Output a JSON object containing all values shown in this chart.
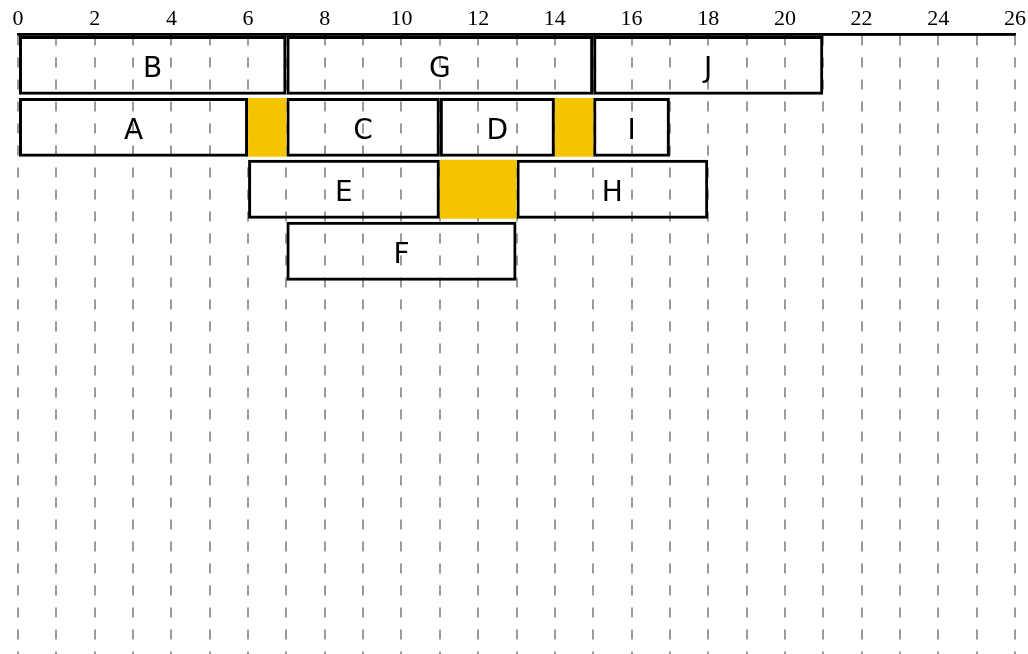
{
  "chart_data": {
    "type": "bar",
    "orientation": "horizontal",
    "categories": [
      null,
      null,
      null,
      null,
      null,
      null,
      null,
      null,
      null,
      null
    ],
    "series": [
      {
        "name": "B",
        "color": "#000000",
        "values": [
          7,
          null,
          null,
          null,
          null,
          null,
          null,
          null,
          null,
          null
        ],
        "base": [
          0,
          null,
          null,
          null,
          null,
          null,
          null,
          null,
          null,
          null
        ]
      },
      {
        "name": "G",
        "color": "#000000",
        "values": [
          8,
          null,
          null,
          null,
          null,
          null,
          null,
          null,
          null,
          null
        ],
        "base": [
          7,
          null,
          null,
          null,
          null,
          null,
          null,
          null,
          null,
          null
        ]
      },
      {
        "name": "J",
        "color": "#000000",
        "values": [
          6,
          null,
          null,
          null,
          null,
          null,
          null,
          null,
          null,
          null
        ],
        "base": [
          15,
          null,
          null,
          null,
          null,
          null,
          null,
          null,
          null,
          null
        ]
      },
      {
        "name": "A",
        "color": "#000000",
        "values": [
          null,
          6,
          null,
          null,
          null,
          null,
          null,
          null,
          null,
          null
        ],
        "base": [
          null,
          0,
          null,
          null,
          null,
          null,
          null,
          null,
          null,
          null
        ]
      },
      {
        "color": "#f5c400",
        "values": [
          null,
          1,
          null,
          null,
          null,
          null,
          null,
          null,
          null,
          null
        ],
        "base": [
          null,
          6,
          null,
          null,
          null,
          null,
          null,
          null,
          null,
          null
        ]
      },
      {
        "name": "C",
        "color": "#000000",
        "values": [
          null,
          4,
          null,
          null,
          null,
          null,
          null,
          null,
          null,
          null
        ],
        "base": [
          null,
          7,
          null,
          null,
          null,
          null,
          null,
          null,
          null,
          null
        ]
      },
      {
        "name": "D",
        "color": "#000000",
        "values": [
          null,
          3,
          null,
          null,
          null,
          null,
          null,
          null,
          null,
          null
        ],
        "base": [
          null,
          11,
          null,
          null,
          null,
          null,
          null,
          null,
          null,
          null
        ]
      },
      {
        "color": "#f5c400",
        "values": [
          null,
          1,
          null,
          null,
          null,
          null,
          null,
          null,
          null,
          null
        ],
        "base": [
          null,
          14,
          null,
          null,
          null,
          null,
          null,
          null,
          null,
          null
        ]
      },
      {
        "name": "I",
        "color": "#000000",
        "values": [
          null,
          2,
          null,
          null,
          null,
          null,
          null,
          null,
          null,
          null
        ],
        "base": [
          null,
          15,
          null,
          null,
          null,
          null,
          null,
          null,
          null,
          null
        ]
      },
      {
        "name": "E",
        "color": "#000000",
        "values": [
          null,
          null,
          5,
          null,
          null,
          null,
          null,
          null,
          null,
          null
        ],
        "base": [
          null,
          null,
          6,
          null,
          null,
          null,
          null,
          null,
          null,
          null
        ]
      },
      {
        "color": "#f5c400",
        "values": [
          null,
          null,
          2,
          null,
          null,
          null,
          null,
          null,
          null,
          null
        ],
        "base": [
          null,
          null,
          11,
          null,
          null,
          null,
          null,
          null,
          null,
          null
        ]
      },
      {
        "name": "H",
        "color": "#000000",
        "values": [
          null,
          null,
          5,
          null,
          null,
          null,
          null,
          null,
          null,
          null
        ],
        "base": [
          null,
          null,
          13,
          null,
          null,
          null,
          null,
          null,
          null,
          null
        ]
      },
      {
        "name": "F",
        "color": "#000000",
        "values": [
          null,
          null,
          null,
          6,
          null,
          null,
          null,
          null,
          null,
          null
        ],
        "base": [
          null,
          null,
          null,
          7,
          null,
          null,
          null,
          null,
          null,
          null
        ]
      }
    ],
    "xlim": [
      0,
      26
    ],
    "xticks": [
      0,
      {
        "value": 1,
        "label": null
      },
      2,
      {
        "value": 3,
        "label": null
      },
      4,
      {
        "value": 5,
        "label": null
      },
      6,
      {
        "value": 7,
        "label": null
      },
      8,
      {
        "value": 9,
        "label": null
      },
      10,
      {
        "value": 11,
        "label": null
      },
      12,
      {
        "value": 13,
        "label": null
      },
      14,
      {
        "value": 15,
        "label": null
      },
      16,
      {
        "value": 17,
        "label": null
      },
      18,
      {
        "value": 19,
        "label": null
      },
      20,
      {
        "value": 21,
        "label": null
      },
      22,
      {
        "value": 23,
        "label": null
      },
      24,
      {
        "value": 25,
        "label": null
      },
      26
    ],
    "grid": "x",
    "tick_labels": "x"
  }
}
